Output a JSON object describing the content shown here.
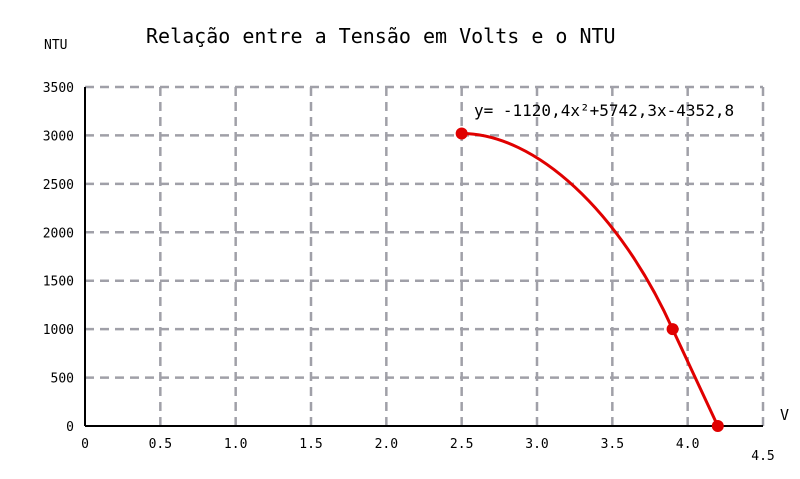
{
  "chart_data": {
    "type": "line",
    "title": "Relação entre a Tensão em Volts e o NTU",
    "ylabel": "NTU",
    "xlabel": "V",
    "xlim": [
      0,
      4.5
    ],
    "ylim": [
      0,
      3500
    ],
    "x_ticks": [
      "0",
      "0.5",
      "1.0",
      "1.5",
      "2.0",
      "2.5",
      "3.0",
      "3.5",
      "4.0",
      "4.5"
    ],
    "y_ticks": [
      "0",
      "500",
      "1000",
      "1500",
      "2000",
      "2500",
      "3000",
      "3500"
    ],
    "grid": true,
    "annotation": "y= -1120,4x²+5742,3x-4352,8",
    "series": [
      {
        "points": [
          {
            "x": 2.5,
            "y": 3020
          },
          {
            "x": 3.9,
            "y": 1000
          },
          {
            "x": 4.2,
            "y": 0
          }
        ],
        "color": "#e00000"
      }
    ]
  }
}
